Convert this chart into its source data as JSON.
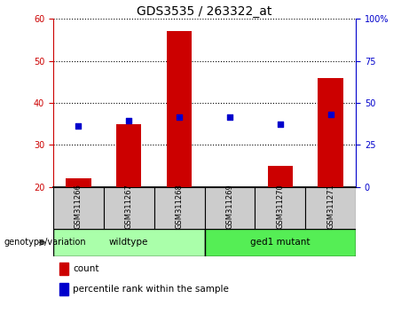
{
  "title": "GDS3535 / 263322_at",
  "samples": [
    "GSM311266",
    "GSM311267",
    "GSM311268",
    "GSM311269",
    "GSM311270",
    "GSM311271"
  ],
  "counts": [
    22,
    35,
    57,
    20,
    25,
    46
  ],
  "percentile_ranks": [
    36.5,
    39.5,
    41.5,
    41.5,
    37.5,
    43.0
  ],
  "left_ylim": [
    20,
    60
  ],
  "right_ylim": [
    0,
    100
  ],
  "left_yticks": [
    20,
    30,
    40,
    50,
    60
  ],
  "right_yticks": [
    0,
    25,
    50,
    75,
    100
  ],
  "right_yticklabels": [
    "0",
    "25",
    "50",
    "75",
    "100%"
  ],
  "bar_color": "#CC0000",
  "dot_color": "#0000CC",
  "bar_bottom": 20,
  "groups": [
    {
      "label": "wildtype",
      "indices": [
        0,
        1,
        2
      ],
      "color": "#AAFFAA"
    },
    {
      "label": "ged1 mutant",
      "indices": [
        3,
        4,
        5
      ],
      "color": "#55EE55"
    }
  ],
  "group_label": "genotype/variation",
  "legend_count_label": "count",
  "legend_percentile_label": "percentile rank within the sample",
  "title_fontsize": 10,
  "tick_fontsize": 7,
  "label_fontsize": 7.5,
  "grid_linestyle": "dotted",
  "grid_color": "#000000",
  "axes_left_color": "#CC0000",
  "axes_right_color": "#0000CC",
  "sample_area_color": "#CCCCCC",
  "bar_width": 0.5
}
